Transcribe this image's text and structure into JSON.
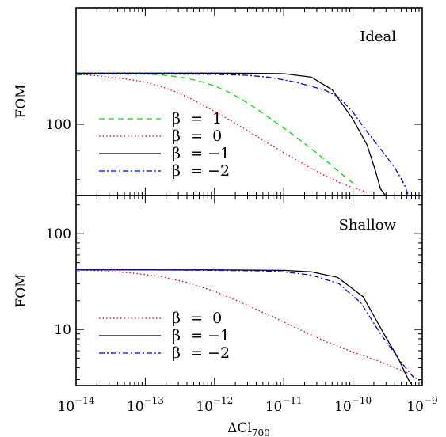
{
  "chart_data": [
    {
      "type": "line",
      "panel_label": "Ideal",
      "ylabel": "FOM",
      "xlabel": "",
      "x_scale": "log",
      "y_scale": "log",
      "xlim": [
        1e-14,
        1e-09
      ],
      "ylim": [
        75,
        160
      ],
      "y_ticks": [
        {
          "value": 100,
          "label": "100"
        }
      ],
      "legend": {
        "placement": "lower-left",
        "labels": [
          "β  =  1",
          "β  =  0",
          "β  = −1",
          "β  = −2"
        ]
      },
      "series": [
        {
          "name": "β  =  1",
          "color": "#00dd00",
          "dash": "dashed",
          "x": [
            1e-14,
            1.6e-14,
            2.7e-14,
            5e-14,
            1e-13,
            1.6e-13,
            2.5e-13,
            4e-13,
            6.3e-13,
            1e-12,
            1.6e-12,
            2.5e-12,
            4e-12,
            6.3e-12,
            1e-11,
            1.6e-11,
            2.5e-11,
            4e-11,
            6.3e-11,
            1e-10
          ],
          "y": [
            122,
            122.5,
            122.6,
            122.6,
            122.5,
            122.2,
            121.5,
            120.4,
            118.9,
            116.8,
            113.9,
            110.5,
            106.6,
            102.5,
            98.5,
            94.5,
            90.6,
            86.5,
            82.5,
            78.8
          ]
        },
        {
          "name": "β  =  0",
          "color": "#ee0000",
          "dash": "dotted",
          "x": [
            1e-14,
            1.6e-14,
            2.5e-14,
            4e-14,
            6.3e-14,
            1e-13,
            1.6e-13,
            2.5e-13,
            4e-13,
            6.3e-13,
            1e-12,
            1.6e-12,
            2.5e-12,
            4e-12,
            6.3e-12,
            1e-11,
            1.6e-11,
            2.5e-11,
            4e-11,
            6.3e-11,
            1e-10,
            1.6e-10
          ],
          "y": [
            122.5,
            122,
            121.4,
            120.6,
            119.7,
            118.5,
            116.8,
            114.5,
            111.7,
            108.6,
            105.4,
            102,
            98.8,
            95.4,
            92.2,
            89.2,
            86.3,
            83.6,
            81.2,
            79.1,
            77.4,
            76
          ]
        },
        {
          "name": "β  = −1",
          "color": "#000000",
          "dash": "solid",
          "x": [
            1e-14,
            5e-14,
            3e-13,
            1e-12,
            4e-12,
            1e-11,
            2.5e-11,
            5e-11,
            1e-10,
            1.6e-10,
            2.1e-10,
            2.5e-10,
            3.2e-10
          ],
          "y": [
            123,
            123,
            123,
            123,
            122.9,
            122.7,
            121,
            115,
            102,
            92,
            83,
            77,
            74
          ]
        },
        {
          "name": "β  = −2",
          "color": "#0000ee",
          "dash": "dashdot",
          "x": [
            1e-14,
            5e-14,
            3e-13,
            1e-12,
            3e-12,
            6e-12,
            1e-11,
            1.6e-11,
            2.5e-11,
            4e-11,
            6.3e-11,
            1e-10,
            1.6e-10,
            2.5e-10,
            4e-10,
            5.5e-10,
            6.3e-10
          ],
          "y": [
            122.5,
            122.5,
            122.5,
            122.4,
            121.9,
            121,
            119.7,
            118.3,
            116.6,
            114.7,
            111.5,
            105,
            97,
            90.5,
            84,
            78.5,
            75
          ]
        }
      ]
    },
    {
      "type": "line",
      "panel_label": "Shallow",
      "ylabel": "FOM",
      "xlabel": "ΔCl",
      "xlabel_subscript": "700",
      "x_scale": "log",
      "y_scale": "log",
      "xlim": [
        1e-14,
        1e-09
      ],
      "ylim": [
        2.6,
        250
      ],
      "y_ticks": [
        {
          "value": 10,
          "label": "10"
        },
        {
          "value": 100,
          "label": "100"
        }
      ],
      "x_ticks": [
        {
          "value": 1e-14,
          "base": "10",
          "exp": "−14"
        },
        {
          "value": 1e-13,
          "base": "10",
          "exp": "−13"
        },
        {
          "value": 1e-12,
          "base": "10",
          "exp": "−12"
        },
        {
          "value": 1e-11,
          "base": "10",
          "exp": "−11"
        },
        {
          "value": 1e-10,
          "base": "10",
          "exp": "−10"
        },
        {
          "value": 1e-09,
          "base": "10",
          "exp": "−9"
        }
      ],
      "legend": {
        "placement": "lower-left",
        "labels": [
          "β  =  0",
          "β  = −1",
          "β  = −2"
        ]
      },
      "series": [
        {
          "name": "β  =  0",
          "color": "#ee0000",
          "dash": "dotted",
          "x": [
            1e-14,
            2.5e-14,
            6.3e-14,
            1.6e-13,
            4e-13,
            1e-12,
            2.5e-12,
            6.3e-12,
            1.6e-11,
            4e-11,
            1e-10,
            2.5e-10,
            6.3e-10,
            1e-09
          ],
          "y": [
            42,
            41,
            39,
            36,
            31,
            25,
            19,
            14,
            10.2,
            7.5,
            5.8,
            4.6,
            3.5,
            2.8
          ]
        },
        {
          "name": "β  = −1",
          "color": "#000000",
          "dash": "solid",
          "x": [
            1e-14,
            1e-13,
            1e-12,
            1e-11,
            2.5e-11,
            6e-11,
            1.4e-10,
            2.8e-10,
            4.5e-10,
            6.3e-10,
            7e-10
          ],
          "y": [
            42,
            42,
            42,
            41.5,
            40,
            35,
            22,
            9,
            5,
            3,
            2.7
          ]
        },
        {
          "name": "β  = −2",
          "color": "#0000ee",
          "dash": "dashdot",
          "x": [
            1e-14,
            1e-13,
            1e-12,
            5e-12,
            1e-11,
            2.5e-11,
            6.3e-11,
            1.3e-10,
            2.5e-10,
            5e-10,
            8e-10
          ],
          "y": [
            42,
            42,
            41.5,
            41,
            40,
            37,
            30,
            19,
            9,
            4.5,
            3
          ]
        }
      ]
    }
  ]
}
